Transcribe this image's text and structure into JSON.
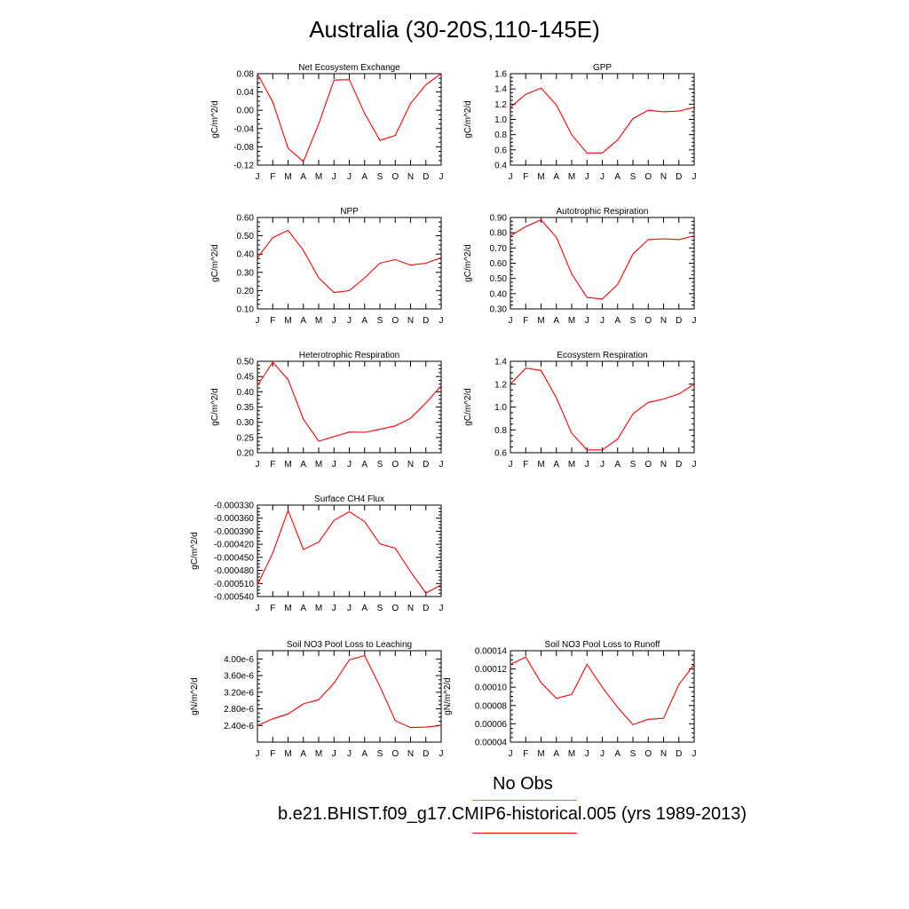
{
  "title": "Australia (30-20S,110-145E)",
  "months": [
    "J",
    "F",
    "M",
    "A",
    "M",
    "J",
    "J",
    "A",
    "S",
    "O",
    "N",
    "D",
    "J"
  ],
  "line_color": "#ff0000",
  "obs_color": "#8080ff",
  "legend": {
    "obs_label": "No Obs",
    "model_label": "b.e21.BHIST.f09_g17.CMIP6-historical.005 (yrs 1989-2013)"
  },
  "chart_data": [
    {
      "type": "line",
      "title": "Net Ecosystem Exchange",
      "ylabel": "gC/m^2/d",
      "ylim": [
        -0.12,
        0.08
      ],
      "ticks": [
        0.08,
        0.04,
        0.0,
        -0.04,
        -0.08,
        -0.12
      ],
      "tick_labels": [
        "0.08",
        "0.04",
        "0.00",
        "-0.04",
        "-0.08",
        "-0.12"
      ],
      "values": [
        0.08,
        0.018,
        -0.083,
        -0.112,
        -0.03,
        0.066,
        0.067,
        -0.007,
        -0.066,
        -0.055,
        0.015,
        0.056,
        0.08
      ]
    },
    {
      "type": "line",
      "title": "GPP",
      "ylabel": "gC/m^2/d",
      "ylim": [
        0.4,
        1.6
      ],
      "ticks": [
        1.6,
        1.4,
        1.2,
        1.0,
        0.8,
        0.6,
        0.4
      ],
      "tick_labels": [
        "1.6",
        "1.4",
        "1.2",
        "1.0",
        "0.8",
        "0.6",
        "0.4"
      ],
      "values": [
        1.16,
        1.33,
        1.41,
        1.19,
        0.8,
        0.56,
        0.56,
        0.73,
        1.01,
        1.12,
        1.1,
        1.11,
        1.16
      ]
    },
    {
      "type": "line",
      "title": "NPP",
      "ylabel": "gC/m^2/d",
      "ylim": [
        0.1,
        0.6
      ],
      "ticks": [
        0.6,
        0.5,
        0.4,
        0.3,
        0.2,
        0.1
      ],
      "tick_labels": [
        "0.60",
        "0.50",
        "0.40",
        "0.30",
        "0.20",
        "0.10"
      ],
      "values": [
        0.38,
        0.49,
        0.53,
        0.42,
        0.27,
        0.19,
        0.2,
        0.27,
        0.35,
        0.37,
        0.34,
        0.35,
        0.38
      ]
    },
    {
      "type": "line",
      "title": "Autotrophic Respiration",
      "ylabel": "gC/m^2/d",
      "ylim": [
        0.3,
        0.9
      ],
      "ticks": [
        0.9,
        0.8,
        0.7,
        0.6,
        0.5,
        0.4,
        0.3
      ],
      "tick_labels": [
        "0.90",
        "0.80",
        "0.70",
        "0.60",
        "0.50",
        "0.40",
        "0.30"
      ],
      "values": [
        0.78,
        0.84,
        0.885,
        0.77,
        0.53,
        0.375,
        0.365,
        0.46,
        0.66,
        0.755,
        0.76,
        0.755,
        0.78
      ]
    },
    {
      "type": "line",
      "title": "Heterotrophic Respiration",
      "ylabel": "gC/m^2/d",
      "ylim": [
        0.2,
        0.5
      ],
      "ticks": [
        0.5,
        0.45,
        0.4,
        0.35,
        0.3,
        0.25,
        0.2
      ],
      "tick_labels": [
        "0.50",
        "0.45",
        "0.40",
        "0.35",
        "0.30",
        "0.25",
        "0.20"
      ],
      "values": [
        0.42,
        0.497,
        0.44,
        0.31,
        0.238,
        0.253,
        0.268,
        0.267,
        0.277,
        0.288,
        0.313,
        0.363,
        0.42
      ]
    },
    {
      "type": "line",
      "title": "Ecosystem Respiration",
      "ylabel": "gC/m^2/d",
      "ylim": [
        0.6,
        1.4
      ],
      "ticks": [
        1.4,
        1.2,
        1.0,
        0.8,
        0.6
      ],
      "tick_labels": [
        "1.4",
        "1.2",
        "1.0",
        "0.8",
        "0.6"
      ],
      "values": [
        1.2,
        1.34,
        1.32,
        1.08,
        0.77,
        0.625,
        0.625,
        0.72,
        0.94,
        1.04,
        1.07,
        1.115,
        1.2
      ]
    },
    {
      "type": "line",
      "title": "Surface CH4 Flux",
      "ylabel": "gC/m^2/d",
      "ylim": [
        -0.00054,
        -0.00033
      ],
      "ticks": [
        -0.00033,
        -0.00036,
        -0.00039,
        -0.00042,
        -0.00045,
        -0.00048,
        -0.00051,
        -0.00054
      ],
      "tick_labels": [
        "-0.000330",
        "-0.000360",
        "-0.000390",
        "-0.000420",
        "-0.000450",
        "-0.000480",
        "-0.000510",
        "-0.000540"
      ],
      "values": [
        -0.000513,
        -0.00044,
        -0.000342,
        -0.000432,
        -0.000415,
        -0.000365,
        -0.000345,
        -0.000368,
        -0.000419,
        -0.000429,
        -0.000483,
        -0.000532,
        -0.000513
      ]
    },
    null,
    {
      "type": "line",
      "title": "Soil NO3 Pool Loss to Leaching",
      "ylabel": "gN/m^2/d",
      "ylim": [
        2e-06,
        4.2e-06
      ],
      "ticks": [
        4e-06,
        3.6e-06,
        3.2e-06,
        2.8e-06,
        2.4e-06
      ],
      "tick_labels": [
        "4.00e-6",
        "3.60e-6",
        "3.20e-6",
        "2.80e-6",
        "2.40e-6"
      ],
      "values": [
        2.4e-06,
        2.56e-06,
        2.68e-06,
        2.92e-06,
        3.02e-06,
        3.42e-06,
        3.98e-06,
        4.08e-06,
        3.34e-06,
        2.52e-06,
        2.35e-06,
        2.36e-06,
        2.4e-06
      ]
    },
    {
      "type": "line",
      "title": "Soil NO3 Pool Loss to Runoff",
      "ylabel": "gN/m^2/d",
      "ylim": [
        4e-05,
        0.00014
      ],
      "ticks": [
        0.00014,
        0.00012,
        0.0001,
        8e-05,
        6e-05,
        4e-05
      ],
      "tick_labels": [
        "0.00014",
        "0.00012",
        "0.00010",
        "0.00008",
        "0.00006",
        "0.00004"
      ],
      "values": [
        0.000125,
        0.000133,
        0.000105,
        8.8e-05,
        9.2e-05,
        0.000125,
        0.0001,
        7.8e-05,
        5.9e-05,
        6.5e-05,
        6.6e-05,
        0.000103,
        0.000125
      ]
    }
  ]
}
